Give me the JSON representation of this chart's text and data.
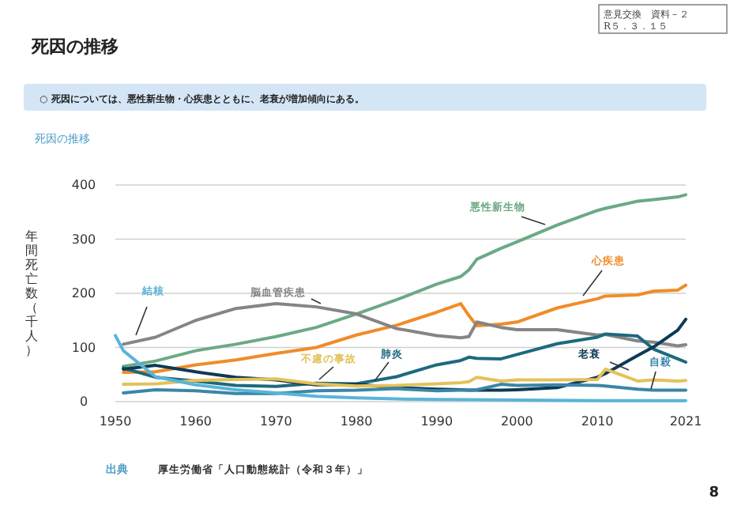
{
  "chart_data": {
    "type": "line",
    "title": "死因の推移",
    "subtitle": "○ 死因については、悪性新生物・心疾患とともに、老衰が増加傾向にある。",
    "ylabel": "年間死亡数（千人）",
    "annotations": [
      "意見交換　資料－２",
      "R５．３．１５",
      "死因の推移",
      "出典",
      "厚生労働省「人口動態統計（令和３年）」",
      "8"
    ],
    "x": [
      1951,
      1955,
      1960,
      1965,
      1970,
      1975,
      1980,
      1985,
      1990,
      1993,
      1994,
      1995,
      1998,
      2000,
      2005,
      2010,
      2011,
      2015,
      2017,
      2020,
      2021
    ],
    "series": [
      {
        "name": "悪性新生物",
        "color": "#6aaa84",
        "values": [
          65,
          75,
          94,
          106,
          120,
          137,
          162,
          188,
          217,
          231,
          243,
          263,
          283,
          295,
          326,
          353,
          357,
          370,
          373,
          378,
          382
        ]
      },
      {
        "name": "心疾患",
        "color": "#f08c2a",
        "values": [
          54,
          55,
          68,
          77,
          89,
          100,
          123,
          141,
          165,
          181,
          159,
          140,
          143,
          147,
          173,
          190,
          195,
          197,
          204,
          206,
          215
        ]
      },
      {
        "name": "脳血管疾患",
        "color": "#858585",
        "values": [
          106,
          119,
          150,
          172,
          181,
          175,
          162,
          135,
          122,
          118,
          120,
          147,
          137,
          133,
          133,
          123,
          124,
          112,
          110,
          103,
          105
        ]
      },
      {
        "name": "肺炎",
        "color": "#1c6a7e",
        "values": [
          62,
          45,
          38,
          30,
          28,
          34,
          33,
          46,
          68,
          76,
          82,
          80,
          79,
          87,
          107,
          119,
          125,
          121,
          97,
          79,
          73
        ]
      },
      {
        "name": "老衰",
        "color": "#0d3a55",
        "values": [
          60,
          67,
          55,
          45,
          40,
          31,
          32,
          26,
          23,
          22,
          21,
          21,
          21,
          22,
          26,
          45,
          52,
          85,
          101,
          132,
          152
        ]
      },
      {
        "name": "不慮の事故",
        "color": "#e3c25a",
        "values": [
          32,
          33,
          39,
          41,
          42,
          33,
          29,
          30,
          33,
          35,
          37,
          45,
          38,
          40,
          40,
          41,
          60,
          38,
          40,
          38,
          39
        ]
      },
      {
        "name": "自殺",
        "color": "#3a86a8",
        "values": [
          16,
          22,
          20,
          15,
          15,
          20,
          21,
          24,
          20,
          21,
          21,
          22,
          32,
          30,
          31,
          30,
          29,
          23,
          21,
          21,
          21
        ]
      },
      {
        "name": "結核",
        "color": "#5ab4d8",
        "x": [
          1950,
          1951,
          1955,
          1960,
          1965,
          1970,
          1975,
          1980,
          1985,
          1990,
          2000,
          2010,
          2021
        ],
        "values": [
          122,
          94,
          46,
          31,
          22,
          16,
          10,
          7,
          5,
          4,
          3,
          2,
          2
        ]
      }
    ],
    "xlim": [
      1950,
      2021
    ],
    "xticks": [
      1950,
      1960,
      1970,
      1980,
      1990,
      2000,
      2010,
      2021
    ],
    "ylim": [
      0,
      400
    ],
    "yticks": [
      0,
      100,
      200,
      300,
      400
    ],
    "grid": "y",
    "legend": false,
    "marker": "none",
    "line_style": "solid"
  }
}
